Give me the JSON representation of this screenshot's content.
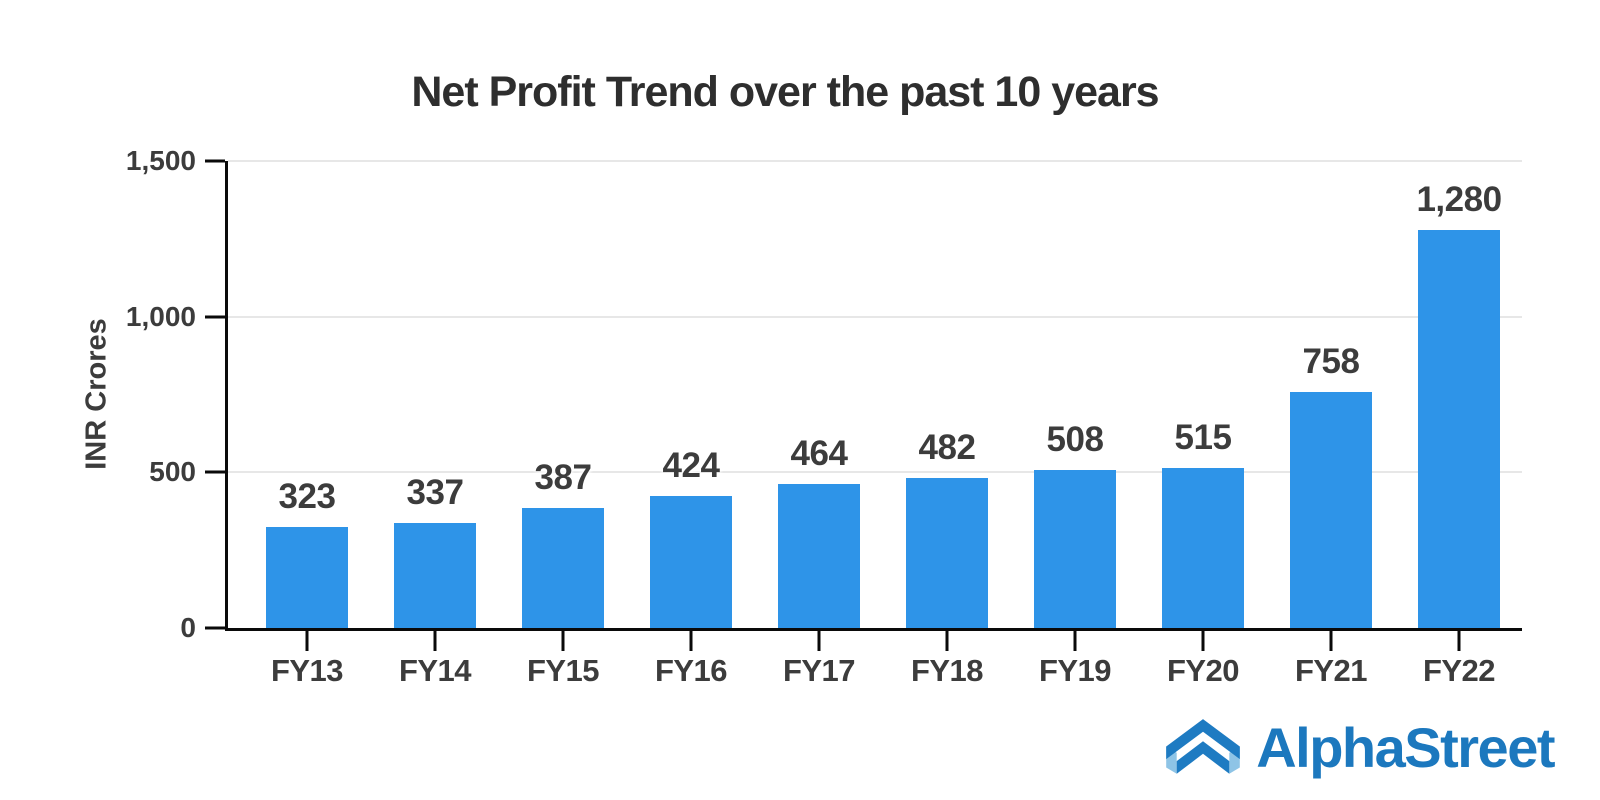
{
  "chart_data": {
    "type": "bar",
    "title": "Net Profit Trend over the past 10 years",
    "xlabel": "",
    "ylabel": "INR Crores",
    "categories": [
      "FY13",
      "FY14",
      "FY15",
      "FY16",
      "FY17",
      "FY18",
      "FY19",
      "FY20",
      "FY21",
      "FY22"
    ],
    "values": [
      323,
      337,
      387,
      424,
      464,
      482,
      508,
      515,
      758,
      1280
    ],
    "value_labels": [
      "323",
      "337",
      "387",
      "424",
      "464",
      "482",
      "508",
      "515",
      "758",
      "1,280"
    ],
    "ylim": [
      0,
      1500
    ],
    "yticks": [
      0,
      500,
      1000,
      1500
    ],
    "ytick_labels": [
      "0",
      "500",
      "1,000",
      "1,500"
    ],
    "grid": "horizontal",
    "legend": "none"
  },
  "colors": {
    "bar": "#2E94E8",
    "axis": "#0A0A0A",
    "gridline": "#E7E7E7",
    "text": "#3C3C3C",
    "logo_blue": "#1C78BE",
    "logo_icon_blue": "#1E7BC2",
    "logo_icon_light_blue": "#8EC4E6"
  },
  "branding": {
    "logo_text": "AlphaStreet"
  }
}
